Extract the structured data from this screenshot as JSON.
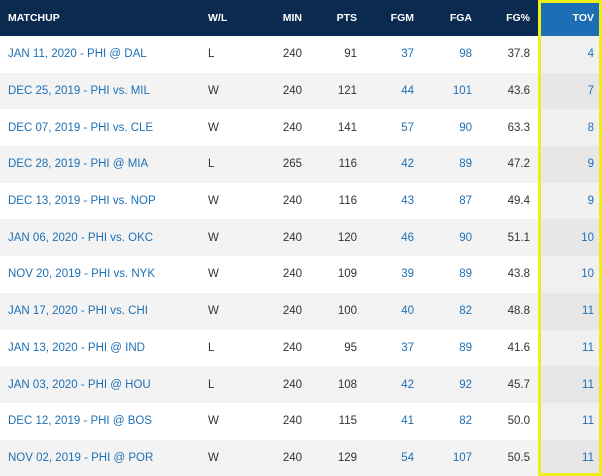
{
  "table": {
    "columns": [
      "MATCHUP",
      "W/L",
      "MIN",
      "PTS",
      "FGM",
      "FGA",
      "FG%",
      "TOV"
    ],
    "rows": [
      [
        "JAN 11, 2020 - PHI @ DAL",
        "L",
        "240",
        "91",
        "37",
        "98",
        "37.8",
        "4"
      ],
      [
        "DEC 25, 2019 - PHI vs. MIL",
        "W",
        "240",
        "121",
        "44",
        "101",
        "43.6",
        "7"
      ],
      [
        "DEC 07, 2019 - PHI vs. CLE",
        "W",
        "240",
        "141",
        "57",
        "90",
        "63.3",
        "8"
      ],
      [
        "DEC 28, 2019 - PHI @ MIA",
        "L",
        "265",
        "116",
        "42",
        "89",
        "47.2",
        "9"
      ],
      [
        "DEC 13, 2019 - PHI vs. NOP",
        "W",
        "240",
        "116",
        "43",
        "87",
        "49.4",
        "9"
      ],
      [
        "JAN 06, 2020 - PHI vs. OKC",
        "W",
        "240",
        "120",
        "46",
        "90",
        "51.1",
        "10"
      ],
      [
        "NOV 20, 2019 - PHI vs. NYK",
        "W",
        "240",
        "109",
        "39",
        "89",
        "43.8",
        "10"
      ],
      [
        "JAN 17, 2020 - PHI vs. CHI",
        "W",
        "240",
        "100",
        "40",
        "82",
        "48.8",
        "11"
      ],
      [
        "JAN 13, 2020 - PHI @ IND",
        "L",
        "240",
        "95",
        "37",
        "89",
        "41.6",
        "11"
      ],
      [
        "JAN 03, 2020 - PHI @ HOU",
        "L",
        "240",
        "108",
        "42",
        "92",
        "45.7",
        "11"
      ],
      [
        "DEC 12, 2019 - PHI @ BOS",
        "W",
        "240",
        "115",
        "41",
        "82",
        "50.0",
        "11"
      ],
      [
        "NOV 02, 2019 - PHI @ POR",
        "W",
        "240",
        "129",
        "54",
        "107",
        "50.5",
        "11"
      ]
    ]
  }
}
